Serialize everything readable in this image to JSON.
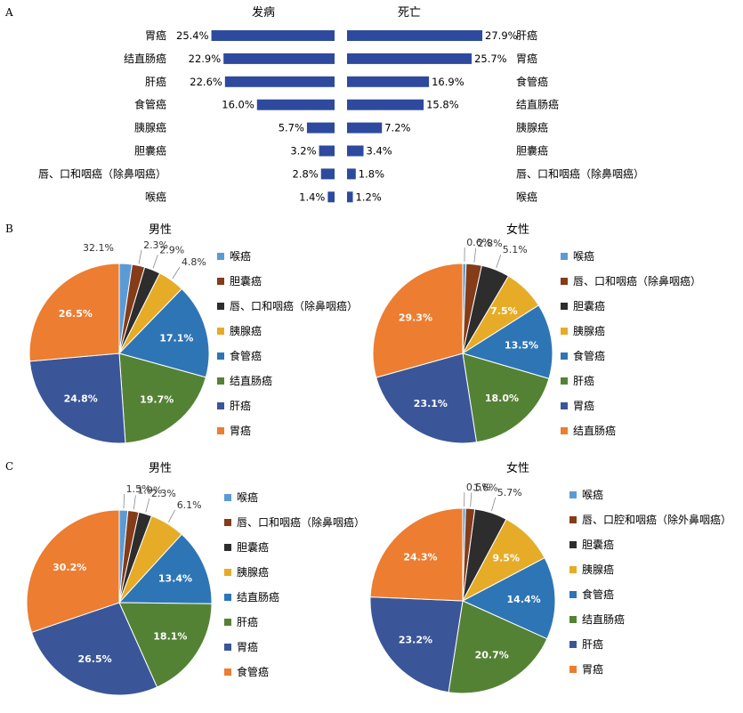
{
  "colors": {
    "bar": "#2e4a9e",
    "pie_palette": [
      "#5b9bd5",
      "#843c19",
      "#2d2d2d",
      "#e6ac27",
      "#2e75b6",
      "#548235",
      "#3a5698",
      "#ed7d31"
    ]
  },
  "chart_data": [
    {
      "type": "bar",
      "panel": "A",
      "layout": "back-to-back horizontal",
      "left": {
        "title": "发病",
        "categories": [
          "胃癌",
          "结直肠癌",
          "肝癌",
          "食管癌",
          "胰腺癌",
          "胆囊癌",
          "唇、口和咽癌（除鼻咽癌）",
          "喉癌"
        ],
        "values": [
          25.4,
          22.9,
          22.6,
          16.0,
          5.7,
          3.2,
          2.8,
          1.4
        ],
        "labels": [
          "25.4%",
          "22.9%",
          "22.6%",
          "16.0%",
          "5.7%",
          "3.2%",
          "2.8%",
          "1.4%"
        ]
      },
      "right": {
        "title": "死亡",
        "categories": [
          "肝癌",
          "胃癌",
          "食管癌",
          "结直肠癌",
          "胰腺癌",
          "胆囊癌",
          "唇、口和咽癌（除鼻咽癌）",
          "喉癌"
        ],
        "values": [
          27.9,
          25.7,
          16.9,
          15.8,
          7.2,
          3.4,
          1.8,
          1.2
        ],
        "labels": [
          "27.9%",
          "25.7%",
          "16.9%",
          "15.8%",
          "7.2%",
          "3.4%",
          "1.8%",
          "1.2%"
        ]
      },
      "xlim": [
        0,
        28
      ]
    },
    {
      "type": "pie",
      "panel": "B",
      "title": "男性",
      "legend": [
        "喉癌",
        "胆囊癌",
        "唇、口和咽癌（除鼻咽癌）",
        "胰腺癌",
        "食管癌",
        "结直肠癌",
        "肝癌",
        "胃癌"
      ],
      "values": [
        2.3,
        2.3,
        2.9,
        4.8,
        17.1,
        19.7,
        24.8,
        26.5
      ],
      "labels": [
        "",
        "2.3%",
        "2.9%",
        "4.8%",
        "17.1%",
        "19.7%",
        "24.8%",
        "26.5%"
      ],
      "extra_label": "32.1%"
    },
    {
      "type": "pie",
      "panel": "B",
      "title": "女性",
      "legend": [
        "喉癌",
        "唇、口和咽癌（除鼻咽癌）",
        "胆囊癌",
        "胰腺癌",
        "食管癌",
        "肝癌",
        "胃癌",
        "结直肠癌"
      ],
      "values": [
        0.6,
        2.8,
        5.1,
        7.5,
        13.5,
        18.0,
        23.1,
        29.3
      ],
      "labels": [
        "0.6%",
        "2.8%",
        "5.1%",
        "7.5%",
        "13.5%",
        "18.0%",
        "23.1%",
        "29.3%"
      ]
    },
    {
      "type": "pie",
      "panel": "C",
      "title": "男性",
      "legend": [
        "喉癌",
        "唇、口和咽癌（除鼻咽癌）",
        "胆囊癌",
        "胰腺癌",
        "结直肠癌",
        "肝癌",
        "胃癌",
        "食管癌"
      ],
      "values": [
        1.5,
        1.9,
        2.3,
        6.1,
        13.4,
        18.1,
        26.5,
        30.2
      ],
      "labels": [
        "1.5%",
        "1.9%",
        "2.3%",
        "6.1%",
        "13.4%",
        "18.1%",
        "26.5%",
        "30.2%"
      ]
    },
    {
      "type": "pie",
      "panel": "C",
      "title": "女性",
      "legend": [
        "喉癌",
        "唇、口腔和咽癌（除外鼻咽癌）",
        "胆囊癌",
        "胰腺癌",
        "食管癌",
        "结直肠癌",
        "肝癌",
        "胃癌"
      ],
      "values": [
        0.5,
        1.6,
        5.7,
        9.5,
        14.4,
        20.7,
        23.2,
        24.3
      ],
      "labels": [
        "0.5%",
        "1.6%",
        "5.7%",
        "9.5%",
        "14.4%",
        "20.7%",
        "23.2%",
        "24.3%"
      ]
    }
  ],
  "panels": {
    "a": "A",
    "b": "B",
    "c": "C"
  }
}
